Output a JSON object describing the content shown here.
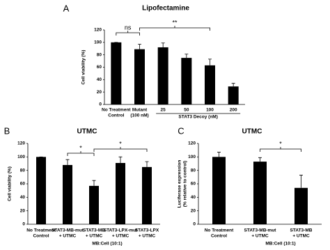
{
  "chart_data": [
    {
      "type": "bar",
      "panel": "A",
      "title": "Lipofectamine",
      "ylabel": [
        "Cell viability (%)"
      ],
      "categories": [
        [
          "No Treatment",
          "Control"
        ],
        [
          "Mutant",
          "(100 nM)"
        ],
        [
          "25"
        ],
        [
          "50"
        ],
        [
          "100"
        ],
        [
          "200"
        ]
      ],
      "values": [
        100,
        89,
        92,
        75,
        63,
        29
      ],
      "errors": [
        0,
        8,
        7,
        6,
        10,
        5
      ],
      "color": "#000000",
      "xlabel": "STAT3 Decoy (nM)",
      "ylim": [
        0,
        120
      ],
      "yticks": [
        0,
        20,
        40,
        60,
        80,
        100,
        120
      ],
      "grid": false,
      "annotations": [
        "ns",
        "**"
      ]
    },
    {
      "type": "bar",
      "panel": "B",
      "title": "UTMC",
      "ylabel": [
        "Cell viability (%)"
      ],
      "categories": [
        [
          "No Treatment",
          "Control"
        ],
        [
          "STAT3-MB-mut",
          "+ UTMC"
        ],
        [
          "STAT3-MB",
          "+ UTMC"
        ],
        [
          "STAT3-LPX-mut",
          "+ UTMC"
        ],
        [
          "STAT3-LPX",
          "+ UTMC"
        ]
      ],
      "values": [
        100,
        88,
        57,
        91,
        85
      ],
      "errors": [
        0,
        8,
        8,
        9,
        8
      ],
      "color": "#000000",
      "xlabel": "MB:Cell (10:1)",
      "ylim": [
        0,
        120
      ],
      "yticks": [
        0,
        20,
        40,
        60,
        80,
        100,
        120
      ],
      "grid": false,
      "annotations": [
        "*",
        "*"
      ]
    },
    {
      "type": "bar",
      "panel": "C",
      "title": "UTMC",
      "ylabel": [
        "Luciferase expression",
        "(% relative to control)"
      ],
      "categories": [
        [
          "No Treatment",
          "Control"
        ],
        [
          "STAT3-MB-mut",
          "+ UTMC"
        ],
        [
          "STAT3-MB",
          "+ UTMC"
        ]
      ],
      "values": [
        100,
        93,
        54
      ],
      "errors": [
        7,
        6,
        19
      ],
      "color": "#000000",
      "xlabel": "MB:Cell (10:1)",
      "ylim": [
        0,
        120
      ],
      "yticks": [
        0,
        20,
        40,
        60,
        80,
        100,
        120
      ],
      "grid": false,
      "annotations": [
        "*"
      ]
    }
  ]
}
